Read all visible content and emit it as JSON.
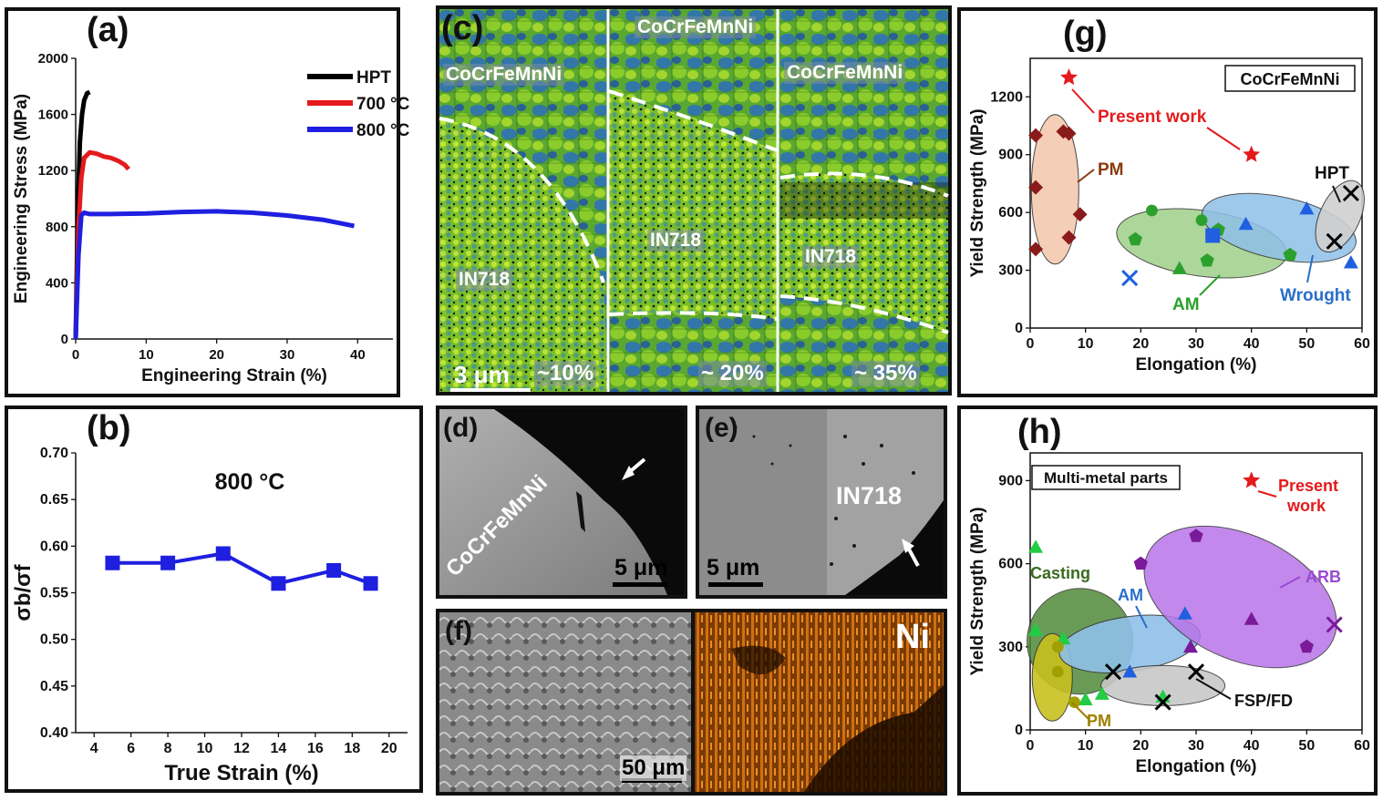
{
  "panels": {
    "a": {
      "label": "(a)"
    },
    "b": {
      "label": "(b)"
    },
    "c": {
      "label": "(c)"
    },
    "d": {
      "label": "(d)"
    },
    "e": {
      "label": "(e)"
    },
    "f": {
      "label": "(f)"
    },
    "g": {
      "label": "(g)"
    },
    "h": {
      "label": "(h)"
    }
  },
  "micro": {
    "c": {
      "left_alloy": "CoCrFeMnNi",
      "mid_alloy": "CoCrFeMnNi",
      "right_alloy": "CoCrFeMnNi",
      "in718_left": "IN718",
      "in718_mid": "IN718",
      "in718_right": "IN718",
      "scale": "3 μm",
      "strain_left": "~10%",
      "strain_mid": "~ 20%",
      "strain_right": "~ 35%"
    },
    "d": {
      "alloy": "CoCrFeMnNi",
      "scale": "5 μm"
    },
    "e": {
      "alloy": "IN718",
      "scale": "5 μm"
    },
    "f": {
      "scale": "50 μm",
      "element": "Ni"
    }
  },
  "colors": {
    "black": "#000000",
    "red": "#e41a1c",
    "blue": "#1f1fe0",
    "ebsd_green": "#6ac21a",
    "ebsd_blue": "#2a6fc9",
    "eds_orange": "#c0620a"
  },
  "chart_data": [
    {
      "id": "a",
      "type": "line",
      "xlabel": "Engineering Strain (%)",
      "ylabel": "Engineering Stress (MPa)",
      "xlim": [
        0,
        45
      ],
      "ylim": [
        0,
        2000
      ],
      "xticks": [
        "0",
        "10",
        "20",
        "30",
        "40"
      ],
      "yticks": [
        "0",
        "400",
        "800",
        "1200",
        "1600",
        "2000"
      ],
      "legend": "top-right",
      "series": [
        {
          "name": "HPT",
          "color": "#000000",
          "x": [
            0,
            0.3,
            0.6,
            0.9,
            1.2,
            1.6,
            2.0
          ],
          "y": [
            0,
            900,
            1400,
            1600,
            1700,
            1750,
            1760
          ]
        },
        {
          "name": "700 °C",
          "color": "#e41a1c",
          "x": [
            0,
            0.4,
            0.8,
            1.2,
            2,
            3,
            4,
            5,
            6,
            7,
            7.5
          ],
          "y": [
            0,
            800,
            1150,
            1290,
            1330,
            1320,
            1300,
            1290,
            1270,
            1240,
            1210
          ]
        },
        {
          "name": "800 °C",
          "color": "#1f1fe0",
          "x": [
            0,
            0.4,
            0.8,
            1.2,
            2,
            5,
            10,
            15,
            20,
            25,
            30,
            35,
            39.5
          ],
          "y": [
            0,
            600,
            880,
            900,
            890,
            890,
            895,
            905,
            910,
            900,
            880,
            850,
            805
          ]
        }
      ]
    },
    {
      "id": "b",
      "type": "line",
      "title": "800 °C",
      "xlabel": "True Strain (%)",
      "ylabel": "σb/σf",
      "xlim": [
        3,
        21
      ],
      "ylim": [
        0.4,
        0.7
      ],
      "xticks": [
        "4",
        "6",
        "8",
        "10",
        "12",
        "14",
        "16",
        "18",
        "20"
      ],
      "yticks": [
        "0.40",
        "0.45",
        "0.50",
        "0.55",
        "0.60",
        "0.65",
        "0.70"
      ],
      "series": [
        {
          "name": "800 °C",
          "color": "#1f1fe0",
          "x": [
            5,
            8,
            11,
            14,
            17,
            19
          ],
          "y": [
            0.582,
            0.582,
            0.592,
            0.56,
            0.574,
            0.56
          ]
        }
      ]
    },
    {
      "id": "g",
      "type": "scatter",
      "xlabel": "Elongation (%)",
      "ylabel": "Yield Strength (MPa)",
      "xlim": [
        0,
        60
      ],
      "ylim": [
        0,
        1400
      ],
      "xticks": [
        "0",
        "10",
        "20",
        "30",
        "40",
        "50",
        "60"
      ],
      "yticks": [
        "0",
        "300",
        "600",
        "900",
        "1200"
      ],
      "box_label": "CoCrFeMnNi",
      "annotations": [
        "Present work",
        "PM",
        "HPT",
        "AM",
        "Wrought"
      ],
      "groups": [
        {
          "name": "Present work",
          "color": "#e41a1c",
          "marker": "star",
          "x": [
            7,
            40
          ],
          "y": [
            1300,
            900
          ]
        },
        {
          "name": "PM",
          "color": "#8b1a1a",
          "marker": "diamond",
          "x": [
            1,
            7,
            6,
            1,
            1,
            9,
            7
          ],
          "y": [
            1000,
            1010,
            1020,
            730,
            410,
            590,
            470
          ]
        },
        {
          "name": "AM",
          "color": "#2ca02c",
          "marker": "mixed",
          "x": [
            22,
            19,
            31,
            32,
            34,
            47,
            27
          ],
          "y": [
            610,
            460,
            560,
            350,
            510,
            380,
            310
          ]
        },
        {
          "name": "Wrought",
          "color": "#1f5fe0",
          "marker": "mixed",
          "x": [
            33,
            39,
            50,
            58,
            18
          ],
          "y": [
            480,
            540,
            620,
            340,
            260
          ]
        },
        {
          "name": "HPT",
          "color": "#000000",
          "marker": "cross",
          "x": [
            58,
            55
          ],
          "y": [
            700,
            450
          ]
        }
      ]
    },
    {
      "id": "h",
      "type": "scatter",
      "xlabel": "Elongation (%)",
      "ylabel": "Yield Strength (MPa)",
      "xlim": [
        0,
        60
      ],
      "ylim": [
        0,
        1000
      ],
      "xticks": [
        "0",
        "10",
        "20",
        "30",
        "40",
        "50",
        "60"
      ],
      "yticks": [
        "0",
        "300",
        "600",
        "900"
      ],
      "box_label": "Multi-metal parts",
      "annotations": [
        "Present work",
        "Casting",
        "AM",
        "ARB",
        "FSP/FD",
        "PM"
      ],
      "groups": [
        {
          "name": "Present work",
          "color": "#e41a1c",
          "marker": "star",
          "x": [
            40
          ],
          "y": [
            900
          ]
        },
        {
          "name": "Casting",
          "color": "#22cc44",
          "marker": "triangle",
          "x": [
            1,
            1,
            6,
            10,
            13,
            24
          ],
          "y": [
            660,
            360,
            330,
            110,
            130,
            120
          ]
        },
        {
          "name": "AM",
          "color": "#1f5fe0",
          "marker": "triangle",
          "x": [
            28,
            18
          ],
          "y": [
            420,
            210
          ]
        },
        {
          "name": "ARB",
          "color": "#7a1a9a",
          "marker": "mixed",
          "x": [
            30,
            20,
            40,
            50,
            55,
            29
          ],
          "y": [
            700,
            600,
            400,
            300,
            380,
            300
          ]
        },
        {
          "name": "FSP/FD",
          "color": "#000000",
          "marker": "cross",
          "x": [
            15,
            30,
            24
          ],
          "y": [
            210,
            210,
            100
          ]
        },
        {
          "name": "PM",
          "color": "#a0a000",
          "marker": "circle",
          "x": [
            5,
            5,
            8
          ],
          "y": [
            300,
            210,
            100
          ]
        }
      ]
    }
  ]
}
